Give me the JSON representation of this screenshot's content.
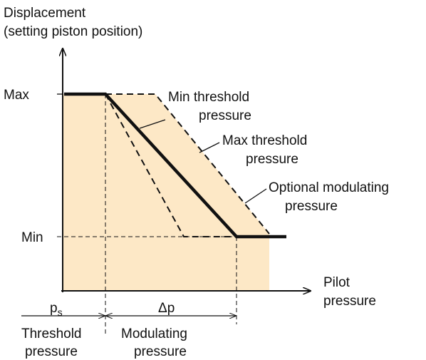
{
  "axes": {
    "y_label": [
      "Displacement",
      "(setting piston position)"
    ],
    "x_label": [
      "Pilot",
      "pressure"
    ],
    "y_max": "Max",
    "y_min": "Min"
  },
  "curves": {
    "min_threshold": [
      "Min threshold",
      "pressure"
    ],
    "max_threshold": [
      "Max threshold",
      "pressure"
    ],
    "optional": [
      "Optional modulating",
      "pressure"
    ]
  },
  "bottom": {
    "ps": "p",
    "ps_sub": "s",
    "dp": "Δp",
    "threshold": [
      "Threshold",
      "pressure"
    ],
    "modulating": [
      "Modulating",
      "pressure"
    ]
  }
}
